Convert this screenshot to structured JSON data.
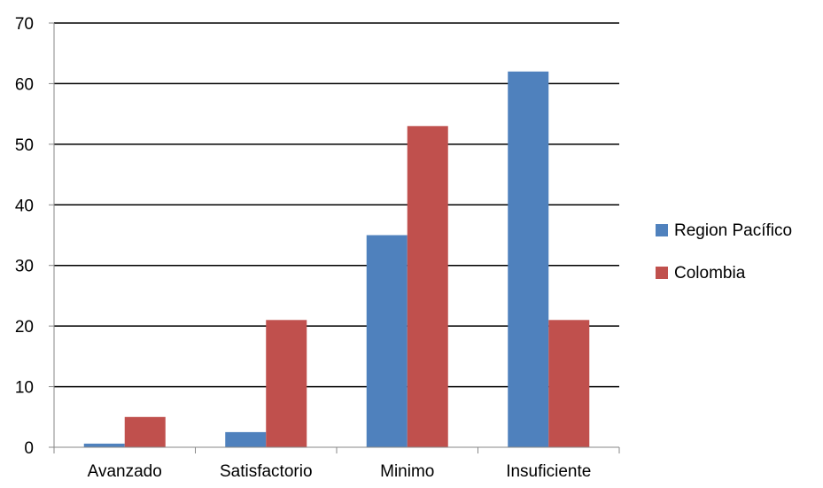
{
  "chart_data": {
    "type": "bar",
    "categories": [
      "Avanzado",
      "Satisfactorio",
      "Minimo",
      "Insuficiente"
    ],
    "series": [
      {
        "name": "Region Pacífico",
        "values": [
          0.6,
          2.5,
          35,
          62
        ],
        "color": "#4F81BD"
      },
      {
        "name": "Colombia",
        "values": [
          5,
          21,
          53,
          21
        ],
        "color": "#C0504D"
      }
    ],
    "y_ticks": [
      0,
      10,
      20,
      30,
      40,
      50,
      60,
      70
    ],
    "ylim": [
      0,
      70
    ],
    "grid": true,
    "legend": "right"
  }
}
